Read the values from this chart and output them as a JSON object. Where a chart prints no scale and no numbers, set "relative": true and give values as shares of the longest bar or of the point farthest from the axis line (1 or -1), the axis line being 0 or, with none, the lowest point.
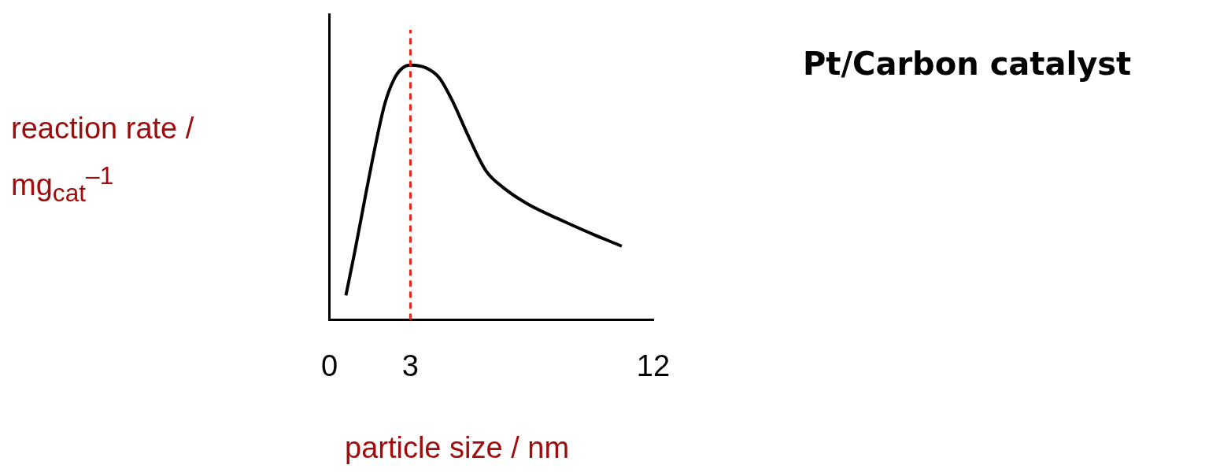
{
  "chart_data": {
    "type": "line",
    "title": "Pt/Carbon catalyst",
    "xlabel": "particle size / nm",
    "ylabel": "reaction rate / mg$_{cat}$$^{–1}$",
    "relative": true,
    "xlim": [
      0,
      12
    ],
    "xticks": [
      0,
      3,
      12
    ],
    "grid": false,
    "legend": false,
    "marker": "none",
    "line_style": "solid",
    "series": [
      {
        "color": "#000000",
        "x": [
          0.61,
          0.93,
          1.3,
          1.68,
          2.05,
          2.42,
          2.7,
          3,
          3.6,
          4.07,
          4.54,
          5.17,
          5.8,
          6.43,
          7.37,
          8.63,
          9.89,
          10.83
        ],
        "values": [
          0.096,
          0.263,
          0.468,
          0.673,
          0.848,
          0.95,
          0.988,
          1,
          0.988,
          0.95,
          0.863,
          0.716,
          0.585,
          0.52,
          0.453,
          0.389,
          0.33,
          0.289
        ]
      }
    ],
    "ref_lines": [
      {
        "axis": "x",
        "value": 3,
        "color": "#e8221c",
        "line_style": "dashed"
      }
    ]
  }
}
